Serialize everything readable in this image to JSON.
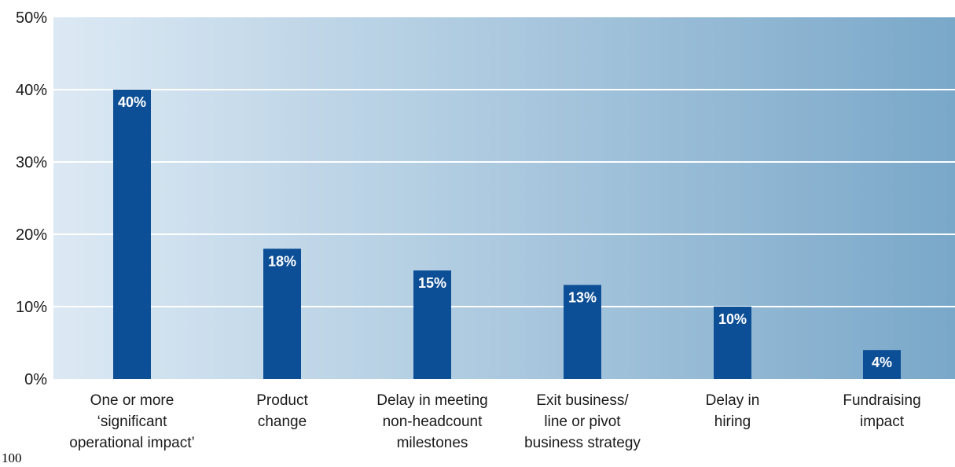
{
  "chart_data": {
    "type": "bar",
    "title": "",
    "xlabel": "",
    "ylabel": "",
    "ylim": [
      0,
      50
    ],
    "y_ticks": [
      0,
      10,
      20,
      30,
      40,
      50
    ],
    "y_tick_labels": [
      "0%",
      "10%",
      "20%",
      "30%",
      "40%",
      "50%"
    ],
    "categories": [
      [
        "One or more",
        "‘significant",
        "operational impact’"
      ],
      [
        "Product",
        "change"
      ],
      [
        "Delay in meeting",
        "non-headcount",
        "milestones"
      ],
      [
        "Exit business/",
        "line or pivot",
        "business strategy"
      ],
      [
        "Delay in",
        "hiring"
      ],
      [
        "Fundraising",
        "impact"
      ]
    ],
    "values": [
      40,
      18,
      15,
      13,
      10,
      4
    ],
    "value_labels": [
      "40%",
      "18%",
      "15%",
      "13%",
      "10%",
      "4%"
    ],
    "grid": true,
    "legend": "none",
    "colors": {
      "bar": "#0d4f96",
      "bar_label": "#ffffff",
      "plot_bg_left": "#dce9f4",
      "plot_bg_right": "#7aa8c9",
      "gridline": "#ffffff",
      "text": "#1a1a1a"
    }
  },
  "footnote": "100"
}
